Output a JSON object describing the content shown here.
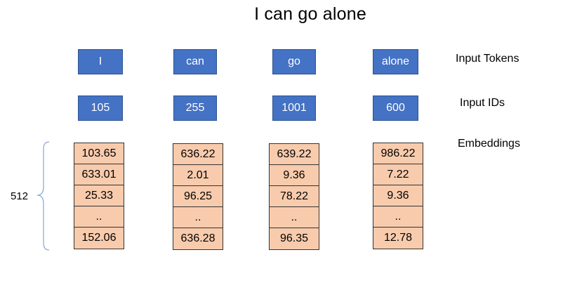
{
  "title": "I can go alone",
  "labels": {
    "tokens": "Input Tokens",
    "ids": "Input IDs",
    "embeddings": "Embeddings",
    "dimension": "512"
  },
  "tokens": [
    "I",
    "can",
    "go",
    "alone"
  ],
  "ids": [
    "105",
    "255",
    "1001",
    "600"
  ],
  "embeddings": [
    [
      "103.65",
      "633.01",
      "25.33",
      "..",
      "152.06"
    ],
    [
      "636.22",
      "2.01",
      "96.25",
      "..",
      "636.28"
    ],
    [
      "639.22",
      "9.36",
      "78.22",
      "..",
      "96.35"
    ],
    [
      "986.22",
      "7.22",
      "9.36",
      "..",
      "12.78"
    ]
  ],
  "colors": {
    "token_fill": "#4472c4",
    "embedding_fill": "#f8cbad",
    "brace": "#8faadc"
  }
}
